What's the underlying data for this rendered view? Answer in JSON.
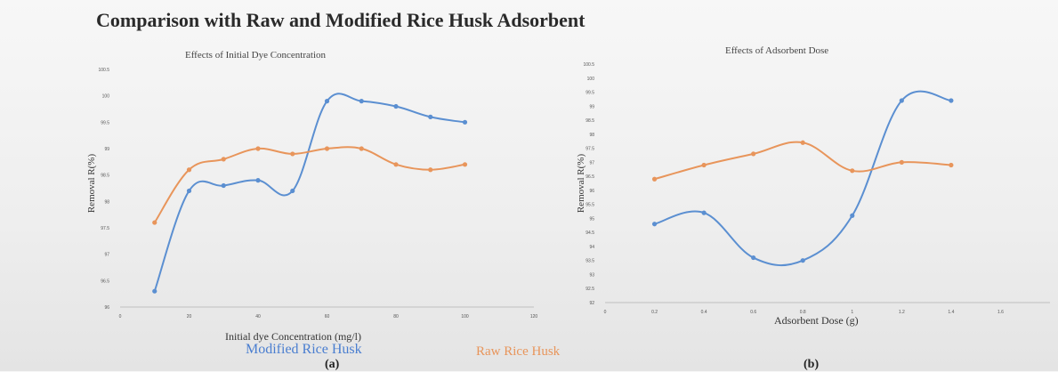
{
  "title": "Comparison with Raw and Modified Rice Husk Adsorbent",
  "legend": {
    "modified": "Modified Rice Husk",
    "raw": "Raw Rice Husk"
  },
  "colors": {
    "modified": "#5b8fd1",
    "raw": "#e8955b",
    "axis": "#bfbfbf"
  },
  "chart_data": [
    {
      "type": "line",
      "panel": "(a)",
      "title": "Effects of Initial Dye Concentration",
      "xlabel": "Initial dye Concentration (mg/l)",
      "ylabel": "Removal R(%)",
      "xlim": [
        0,
        120
      ],
      "ylim": [
        96,
        100.5
      ],
      "xticks": [
        "0",
        "20",
        "40",
        "60",
        "80",
        "100",
        "120"
      ],
      "yticks": [
        "96",
        "96.5",
        "97",
        "97.5",
        "98",
        "98.5",
        "99",
        "99.5",
        "100",
        "100.5"
      ],
      "x": [
        10,
        20,
        30,
        40,
        50,
        60,
        70,
        80,
        90,
        100
      ],
      "series": [
        {
          "name": "Modified Rice Husk",
          "values": [
            96.3,
            98.2,
            98.3,
            98.4,
            98.2,
            99.9,
            99.9,
            99.8,
            99.6,
            99.5
          ]
        },
        {
          "name": "Raw Rice Husk",
          "values": [
            97.6,
            98.6,
            98.8,
            99.0,
            98.9,
            99.0,
            99.0,
            98.7,
            98.6,
            98.7
          ]
        }
      ]
    },
    {
      "type": "line",
      "panel": "(b)",
      "title": "Effects of Adsorbent Dose",
      "xlabel": "Adsorbent Dose (g)",
      "ylabel": "Removal R(%)",
      "xlim": [
        0,
        1.8
      ],
      "ylim": [
        92,
        100.5
      ],
      "xticks": [
        "0",
        "0.2",
        "0.4",
        "0.6",
        "0.8",
        "1",
        "1.2",
        "1.4",
        "1.6"
      ],
      "yticks": [
        "92",
        "92.5",
        "93",
        "93.5",
        "94",
        "94.5",
        "95",
        "95.5",
        "96",
        "96.5",
        "97",
        "97.5",
        "98",
        "98.5",
        "99",
        "99.5",
        "100",
        "100.5"
      ],
      "x": [
        0.2,
        0.4,
        0.6,
        0.8,
        1.0,
        1.2,
        1.4
      ],
      "series": [
        {
          "name": "Modified Rice Husk",
          "values": [
            94.8,
            95.2,
            93.6,
            93.5,
            95.1,
            99.2,
            99.2
          ]
        },
        {
          "name": "Raw Rice Husk",
          "values": [
            96.4,
            96.9,
            97.3,
            97.7,
            96.7,
            97.0,
            96.9
          ]
        }
      ]
    }
  ]
}
